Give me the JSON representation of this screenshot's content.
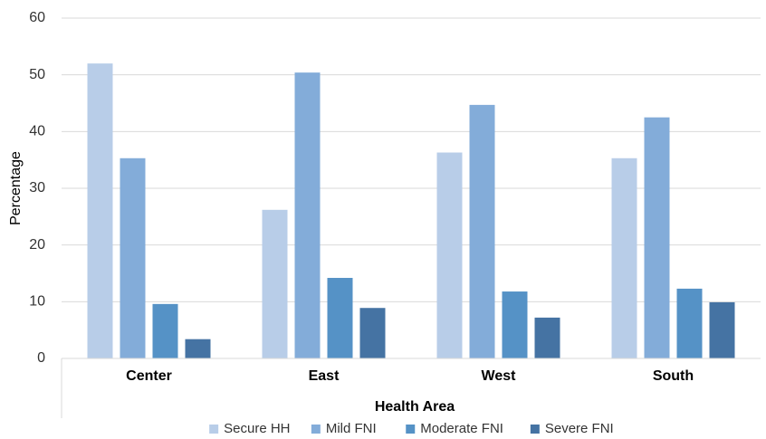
{
  "chart_data": {
    "type": "bar",
    "title": "",
    "xlabel": "Health Area",
    "ylabel": "Percentage",
    "ylim": [
      0,
      60
    ],
    "yticks": [
      0,
      10,
      20,
      30,
      40,
      50,
      60
    ],
    "grid": true,
    "legend_position": "bottom",
    "categories": [
      "Center",
      "East",
      "West",
      "South"
    ],
    "series": [
      {
        "name": "Secure HH",
        "color": "#b8cde8",
        "values": [
          52.0,
          26.2,
          36.3,
          35.3
        ]
      },
      {
        "name": "Mild FNI",
        "color": "#83acd9",
        "values": [
          35.3,
          50.4,
          44.7,
          42.5
        ]
      },
      {
        "name": "Moderate FNI",
        "color": "#5592c6",
        "values": [
          9.6,
          14.2,
          11.8,
          12.3
        ]
      },
      {
        "name": "Severe FNI",
        "color": "#4573a3",
        "values": [
          3.4,
          8.9,
          7.2,
          9.9
        ]
      }
    ]
  }
}
